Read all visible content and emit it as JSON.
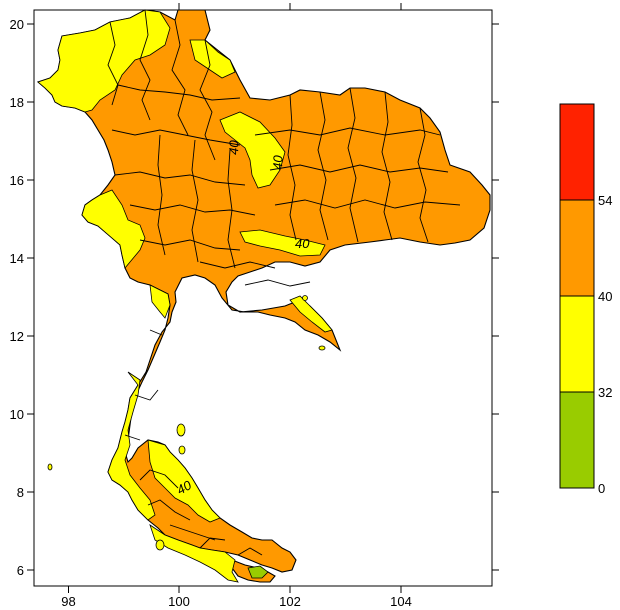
{
  "map": {
    "x_ticks": [
      "98",
      "100",
      "102",
      "104"
    ],
    "y_ticks": [
      "6",
      "8",
      "10",
      "12",
      "14",
      "16",
      "18",
      "20"
    ],
    "x_range": [
      97.4,
      105.7
    ],
    "y_range": [
      5.7,
      20.4
    ],
    "contour_labels": [
      "40",
      "40",
      "40",
      "40"
    ]
  },
  "legend": {
    "bins": [
      {
        "from": 0,
        "to": 32,
        "color": "#99cc00"
      },
      {
        "from": 32,
        "to": 40,
        "color": "#ffff00"
      },
      {
        "from": 40,
        "to": 54,
        "color": "#ff9900"
      },
      {
        "from": 54,
        "to": null,
        "color": "#ff2200"
      }
    ],
    "tick_labels": [
      "0",
      "32",
      "40",
      "54"
    ]
  },
  "colors": {
    "orange": "#ff9900",
    "yellow": "#ffff00",
    "green": "#99cc00",
    "red": "#ff2200",
    "border": "#000000"
  }
}
